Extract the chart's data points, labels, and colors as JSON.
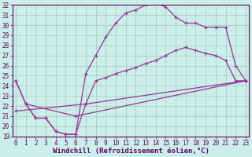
{
  "xlabel": "Windchill (Refroidissement éolien,°C)",
  "xlim": [
    -0.3,
    23.3
  ],
  "ylim": [
    19,
    32
  ],
  "xticks": [
    0,
    1,
    2,
    3,
    4,
    5,
    6,
    7,
    8,
    9,
    10,
    11,
    12,
    13,
    14,
    15,
    16,
    17,
    18,
    19,
    20,
    21,
    22,
    23
  ],
  "yticks": [
    19,
    20,
    21,
    22,
    23,
    24,
    25,
    26,
    27,
    28,
    29,
    30,
    31,
    32
  ],
  "line_color": "#993399",
  "bg_color": "#caeee8",
  "grid_color": "#a0ccbb",
  "lines": [
    {
      "x": [
        0,
        1,
        2,
        3,
        4,
        5,
        6,
        7,
        8,
        9,
        10,
        11,
        12,
        13,
        14,
        15,
        16,
        17,
        18,
        19,
        20,
        21,
        22,
        23
      ],
      "y": [
        24.5,
        22.2,
        20.8,
        20.8,
        19.5,
        19.2,
        19.2,
        25.2,
        27.0,
        28.8,
        30.2,
        31.2,
        31.5,
        32.0,
        32.2,
        31.8,
        30.8,
        30.2,
        30.2,
        29.8,
        29.8,
        29.8,
        26.0,
        24.5
      ]
    },
    {
      "x": [
        0,
        1,
        2,
        3,
        4,
        5,
        6,
        7,
        8,
        9,
        10,
        11,
        12,
        13,
        14,
        15,
        16,
        17,
        18,
        19,
        20,
        21,
        22,
        23
      ],
      "y": [
        24.5,
        22.2,
        20.8,
        20.8,
        19.5,
        19.2,
        19.2,
        22.2,
        24.5,
        24.8,
        25.2,
        25.5,
        25.8,
        26.2,
        26.5,
        27.0,
        27.5,
        27.8,
        27.5,
        27.2,
        27.0,
        26.5,
        24.5,
        24.5
      ]
    },
    {
      "x": [
        0,
        7,
        23
      ],
      "y": [
        21.5,
        22.2,
        24.5
      ]
    },
    {
      "x": [
        1,
        6,
        23
      ],
      "y": [
        22.2,
        21.0,
        24.5
      ]
    }
  ],
  "font_color": "#660066",
  "tick_fontsize": 5.5,
  "label_fontsize": 6.5
}
